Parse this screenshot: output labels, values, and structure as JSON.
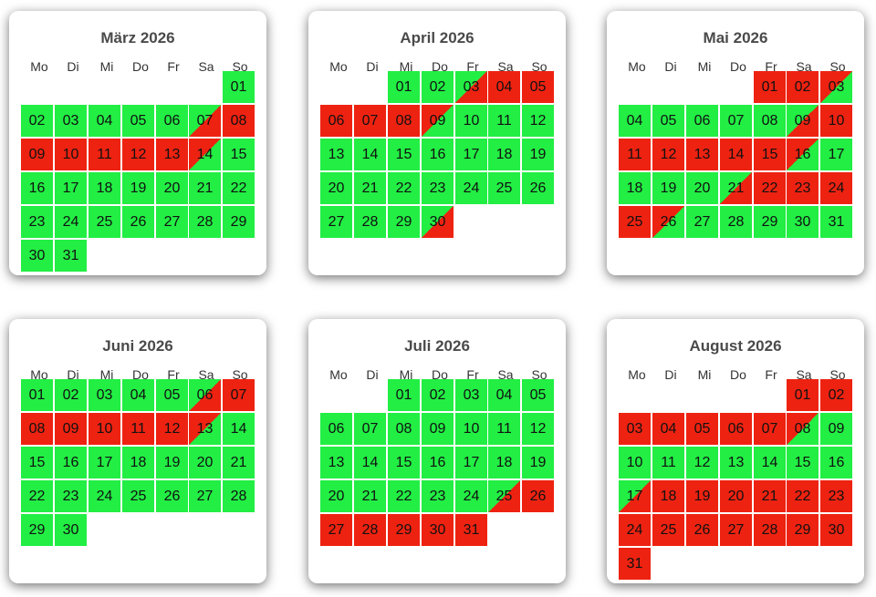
{
  "colors": {
    "free": "#22ee44",
    "booked": "#ee2211"
  },
  "weekdays": [
    "Mo",
    "Di",
    "Mi",
    "Do",
    "Fr",
    "Sa",
    "So"
  ],
  "months": [
    {
      "title": "März 2026",
      "start_weekday": 6,
      "days": [
        "01",
        "02",
        "03",
        "04",
        "05",
        "06",
        "07",
        "08",
        "09",
        "10",
        "11",
        "12",
        "13",
        "14",
        "15",
        "16",
        "17",
        "18",
        "19",
        "20",
        "21",
        "22",
        "23",
        "24",
        "25",
        "26",
        "27",
        "28",
        "29",
        "30",
        "31"
      ],
      "status": [
        "f",
        "f",
        "f",
        "f",
        "f",
        "f",
        "fb",
        "b",
        "b",
        "b",
        "b",
        "b",
        "b",
        "bf",
        "f",
        "f",
        "f",
        "f",
        "f",
        "f",
        "f",
        "f",
        "f",
        "f",
        "f",
        "f",
        "f",
        "f",
        "f",
        "f",
        "f"
      ]
    },
    {
      "title": "April 2026",
      "start_weekday": 2,
      "days": [
        "01",
        "02",
        "03",
        "04",
        "05",
        "06",
        "07",
        "08",
        "09",
        "10",
        "11",
        "12",
        "13",
        "14",
        "15",
        "16",
        "17",
        "18",
        "19",
        "20",
        "21",
        "22",
        "23",
        "24",
        "25",
        "26",
        "27",
        "28",
        "29",
        "30"
      ],
      "status": [
        "f",
        "f",
        "fb",
        "b",
        "b",
        "b",
        "b",
        "b",
        "bf",
        "f",
        "f",
        "f",
        "f",
        "f",
        "f",
        "f",
        "f",
        "f",
        "f",
        "f",
        "f",
        "f",
        "f",
        "f",
        "f",
        "f",
        "f",
        "f",
        "f",
        "fb"
      ]
    },
    {
      "title": "Mai 2026",
      "start_weekday": 4,
      "days": [
        "01",
        "02",
        "03",
        "04",
        "05",
        "06",
        "07",
        "08",
        "09",
        "10",
        "11",
        "12",
        "13",
        "14",
        "15",
        "16",
        "17",
        "18",
        "19",
        "20",
        "21",
        "22",
        "23",
        "24",
        "25",
        "26",
        "27",
        "28",
        "29",
        "30",
        "31"
      ],
      "status": [
        "b",
        "b",
        "bf",
        "f",
        "f",
        "f",
        "f",
        "f",
        "fb",
        "b",
        "b",
        "b",
        "b",
        "b",
        "b",
        "bf",
        "f",
        "f",
        "f",
        "f",
        "fb",
        "b",
        "b",
        "b",
        "b",
        "bf",
        "f",
        "f",
        "f",
        "f",
        "f"
      ]
    },
    {
      "title": "Juni 2026",
      "start_weekday": 0,
      "days": [
        "01",
        "02",
        "03",
        "04",
        "05",
        "06",
        "07",
        "08",
        "09",
        "10",
        "11",
        "12",
        "13",
        "14",
        "15",
        "16",
        "17",
        "18",
        "19",
        "20",
        "21",
        "22",
        "23",
        "24",
        "25",
        "26",
        "27",
        "28",
        "29",
        "30"
      ],
      "status": [
        "f",
        "f",
        "f",
        "f",
        "f",
        "fb",
        "b",
        "b",
        "b",
        "b",
        "b",
        "b",
        "bf",
        "f",
        "f",
        "f",
        "f",
        "f",
        "f",
        "f",
        "f",
        "f",
        "f",
        "f",
        "f",
        "f",
        "f",
        "f",
        "f",
        "f"
      ]
    },
    {
      "title": "Juli 2026",
      "start_weekday": 2,
      "days": [
        "01",
        "02",
        "03",
        "04",
        "05",
        "06",
        "07",
        "08",
        "09",
        "10",
        "11",
        "12",
        "13",
        "14",
        "15",
        "16",
        "17",
        "18",
        "19",
        "20",
        "21",
        "22",
        "23",
        "24",
        "25",
        "26",
        "27",
        "28",
        "29",
        "30",
        "31"
      ],
      "status": [
        "f",
        "f",
        "f",
        "f",
        "f",
        "f",
        "f",
        "f",
        "f",
        "f",
        "f",
        "f",
        "f",
        "f",
        "f",
        "f",
        "f",
        "f",
        "f",
        "f",
        "f",
        "f",
        "f",
        "f",
        "fb",
        "b",
        "b",
        "b",
        "b",
        "b",
        "b"
      ]
    },
    {
      "title": "August 2026",
      "start_weekday": 5,
      "days": [
        "01",
        "02",
        "03",
        "04",
        "05",
        "06",
        "07",
        "08",
        "09",
        "10",
        "11",
        "12",
        "13",
        "14",
        "15",
        "16",
        "17",
        "18",
        "19",
        "20",
        "21",
        "22",
        "23",
        "24",
        "25",
        "26",
        "27",
        "28",
        "29",
        "30",
        "31"
      ],
      "status": [
        "b",
        "b",
        "b",
        "b",
        "b",
        "b",
        "b",
        "bf",
        "f",
        "f",
        "f",
        "f",
        "f",
        "f",
        "f",
        "f",
        "fb",
        "b",
        "b",
        "b",
        "b",
        "b",
        "b",
        "b",
        "b",
        "b",
        "b",
        "b",
        "b",
        "b",
        "b"
      ]
    }
  ]
}
